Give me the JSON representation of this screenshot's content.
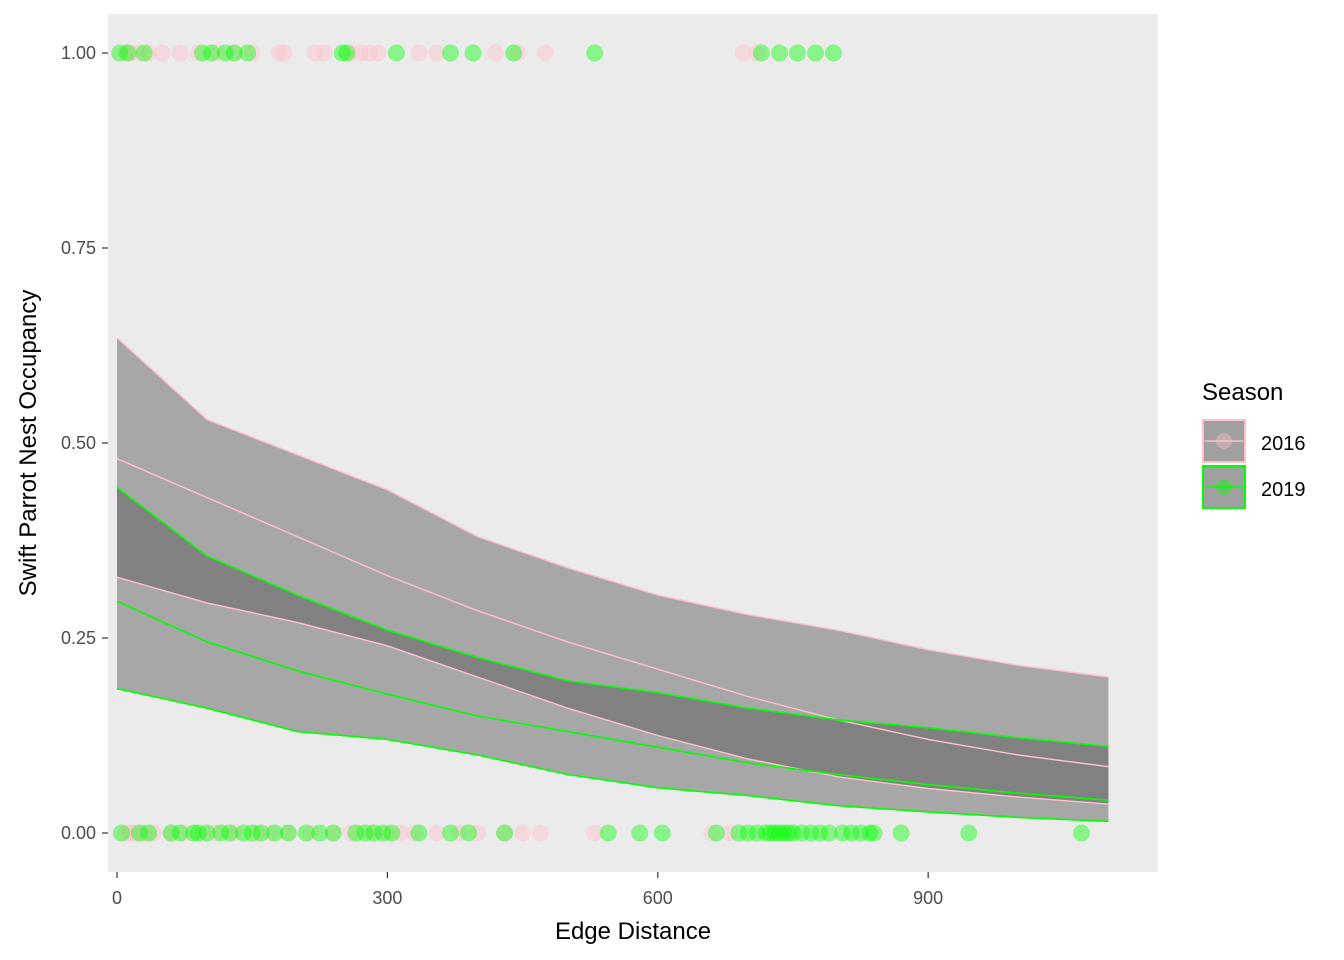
{
  "chart_data": {
    "type": "scatter",
    "xlabel": "Edge Distance",
    "ylabel": "Swift Parrot Nest Occupancy",
    "xlim": [
      -10,
      1155
    ],
    "ylim": [
      -0.05,
      1.05
    ],
    "x_ticks": [
      0,
      300,
      600,
      900
    ],
    "x_tick_labels": [
      "0",
      "300",
      "600",
      "900"
    ],
    "y_ticks": [
      0,
      0.25,
      0.5,
      0.75,
      1
    ],
    "y_tick_labels": [
      "0.00",
      "0.25",
      "0.50",
      "0.75",
      "1.00"
    ],
    "grid": false,
    "panel_background": "#ebebeb",
    "legend": {
      "title": "Season",
      "position": "right",
      "entries": [
        {
          "label": "2016",
          "color": "#ffc0cb"
        },
        {
          "label": "2019",
          "color": "#00ff00"
        }
      ]
    },
    "series": [
      {
        "name": "2016",
        "color": "#ffc0cb",
        "fit": {
          "x": [
            0,
            100,
            200,
            300,
            400,
            500,
            600,
            700,
            800,
            900,
            1000,
            1100
          ],
          "y": [
            0.48,
            0.43,
            0.38,
            0.33,
            0.285,
            0.245,
            0.21,
            0.175,
            0.145,
            0.12,
            0.1,
            0.085
          ],
          "lower": [
            0.328,
            0.295,
            0.27,
            0.24,
            0.2,
            0.16,
            0.125,
            0.095,
            0.072,
            0.057,
            0.046,
            0.037
          ],
          "upper": [
            0.635,
            0.53,
            0.485,
            0.44,
            0.38,
            0.34,
            0.305,
            0.28,
            0.26,
            0.235,
            0.215,
            0.2
          ]
        },
        "points": {
          "x_at_1": [
            10,
            15,
            25,
            35,
            50,
            70,
            90,
            110,
            130,
            150,
            180,
            185,
            220,
            230,
            260,
            270,
            280,
            290,
            335,
            355,
            420,
            445,
            475,
            695,
            710
          ],
          "x_at_0": [
            10,
            15,
            20,
            30,
            40,
            60,
            75,
            95,
            110,
            130,
            155,
            170,
            190,
            215,
            240,
            260,
            280,
            300,
            315,
            330,
            355,
            380,
            400,
            430,
            450,
            470,
            530,
            660,
            680
          ]
        }
      },
      {
        "name": "2019",
        "color": "#00ff00",
        "fit": {
          "x": [
            0,
            100,
            200,
            300,
            400,
            500,
            600,
            700,
            800,
            900,
            1000,
            1100
          ],
          "y": [
            0.297,
            0.245,
            0.208,
            0.178,
            0.15,
            0.13,
            0.11,
            0.09,
            0.075,
            0.062,
            0.051,
            0.042
          ],
          "lower": [
            0.185,
            0.16,
            0.13,
            0.12,
            0.1,
            0.075,
            0.058,
            0.048,
            0.035,
            0.027,
            0.02,
            0.015
          ],
          "upper": [
            0.443,
            0.355,
            0.305,
            0.26,
            0.225,
            0.195,
            0.18,
            0.16,
            0.145,
            0.135,
            0.122,
            0.111
          ]
        },
        "points": {
          "x_at_1": [
            3,
            12,
            30,
            95,
            105,
            120,
            130,
            145,
            250,
            255,
            310,
            370,
            395,
            440,
            530,
            715,
            735,
            755,
            775,
            795
          ],
          "x_at_0": [
            5,
            25,
            35,
            60,
            70,
            85,
            90,
            100,
            115,
            125,
            140,
            150,
            160,
            175,
            190,
            210,
            225,
            240,
            265,
            275,
            285,
            295,
            305,
            335,
            370,
            390,
            430,
            545,
            580,
            605,
            665,
            690,
            700,
            710,
            720,
            725,
            730,
            735,
            740,
            745,
            750,
            760,
            770,
            780,
            790,
            805,
            815,
            825,
            835,
            840,
            870,
            945,
            1070
          ]
        }
      }
    ]
  }
}
